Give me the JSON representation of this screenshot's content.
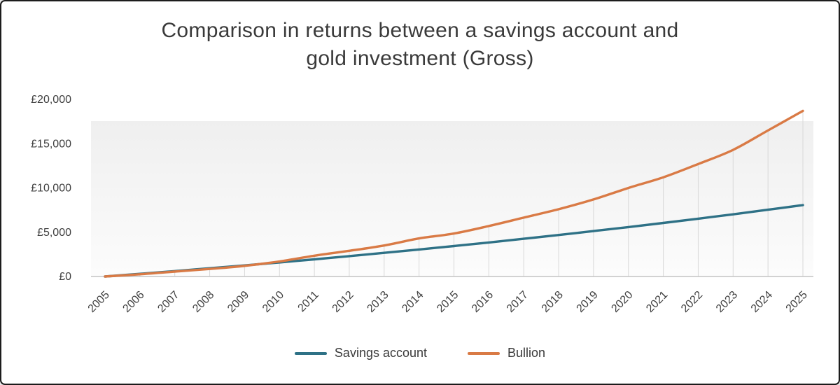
{
  "window": {
    "border_color": "#1c1c1c",
    "background": "#ffffff"
  },
  "chart_data": {
    "type": "line",
    "title": "Comparison in returns between a savings account and gold investment (Gross)",
    "title_lines": {
      "line1": "Comparison in returns between a savings account and",
      "line2": "gold investment (Gross)"
    },
    "x": [
      2005,
      2006,
      2007,
      2008,
      2009,
      2010,
      2011,
      2012,
      2013,
      2014,
      2015,
      2016,
      2017,
      2018,
      2019,
      2020,
      2021,
      2022,
      2023,
      2024,
      2025
    ],
    "series": [
      {
        "name": "Savings account",
        "color": "#2E7186",
        "values": [
          0,
          300,
          610,
          930,
          1250,
          1590,
          1940,
          2300,
          2670,
          3050,
          3440,
          3840,
          4260,
          4690,
          5130,
          5580,
          6050,
          6530,
          7020,
          7540,
          8060
        ]
      },
      {
        "name": "Bullion",
        "color": "#D97A45",
        "values": [
          0,
          250,
          550,
          850,
          1200,
          1700,
          2350,
          2900,
          3500,
          4300,
          4850,
          5700,
          6650,
          7600,
          8700,
          10000,
          11200,
          12700,
          14300,
          16500,
          18700
        ]
      }
    ],
    "currency": "£",
    "ylim": [
      0,
      20000
    ],
    "ytick_step": 5000,
    "ytick_labels": [
      "£0",
      "£5,000",
      "£10,000",
      "£15,000",
      "£20,000"
    ],
    "grid": "vertical droplines from x-axis up to Bullion series",
    "legend_position": "bottom-center",
    "styles": {
      "axis_line_color": "#c4c4c4",
      "dropline_color": "#d8d8d8",
      "tick_label_color": "#3f3f3f",
      "plot_bg_top": "#efefef",
      "plot_bg_bottom": "#fcfcfc"
    }
  }
}
